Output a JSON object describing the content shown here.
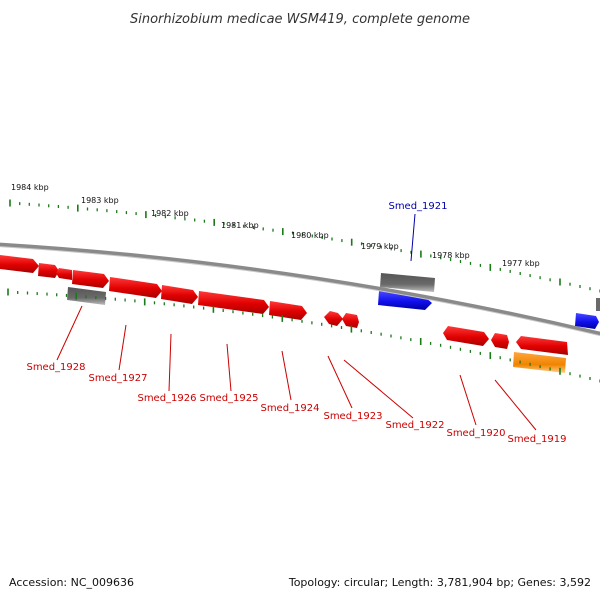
{
  "title": "Sinorhizobium medicae WSM419, complete genome",
  "footer": {
    "accession": "Accession: NC_009636",
    "summary": "Topology: circular; Length: 3,781,904 bp; Genes: 3,592"
  },
  "kbp_labels": [
    "1984 kbp",
    "1983 kbp",
    "1982 kbp",
    "1981 kbp",
    "1980 kbp",
    "1979 kbp",
    "1978 kbp",
    "1977 kbp"
  ],
  "gene_labels": {
    "smed_1921": "Smed_1921",
    "smed_1928": "Smed_1928",
    "smed_1927": "Smed_1927",
    "smed_1926": "Smed_1926",
    "smed_1925": "Smed_1925",
    "smed_1924": "Smed_1924",
    "smed_1923": "Smed_1923",
    "smed_1922": "Smed_1922",
    "smed_1920": "Smed_1920",
    "smed_1919": "Smed_1919"
  },
  "colors": {
    "forward_cds": "#ee0000",
    "reverse_cds": "#1010ee",
    "gray_feature": "#6a6a6a",
    "orange_feature": "#ff8c00",
    "tick": "#1a7a1a",
    "backbone": "#8a8a8a",
    "label_red": "#cc0000",
    "label_blue": "#0000aa"
  }
}
